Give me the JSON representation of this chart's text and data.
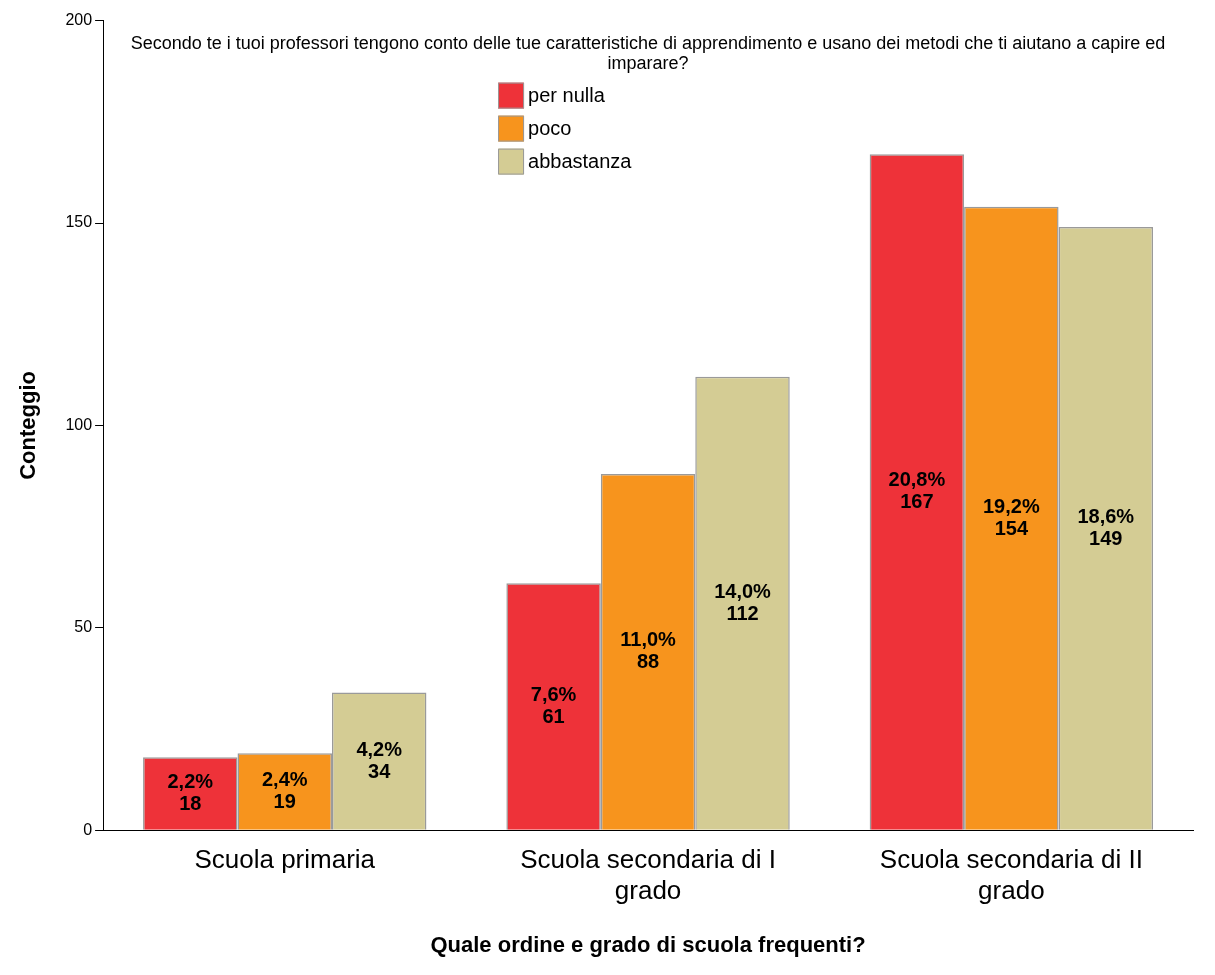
{
  "chart_data": {
    "type": "bar",
    "legend_title": "Secondo te i tuoi professori tengono conto delle tue caratteristiche di apprendimento e usano dei metodi che ti aiutano a capire ed imparare?",
    "xlabel": "Quale ordine e grado di scuola frequenti?",
    "ylabel": "Conteggio",
    "categories": [
      "Scuola primaria",
      "Scuola secondaria di I grado",
      "Scuola secondaria di II grado"
    ],
    "series": [
      {
        "name": "per nulla",
        "color": "#ee3239",
        "values": [
          18,
          61,
          167
        ],
        "value_labels": [
          "2,2%\n18",
          "7,6%\n61",
          "20,8%\n167"
        ]
      },
      {
        "name": "poco",
        "color": "#f7941d",
        "values": [
          19,
          88,
          154
        ],
        "value_labels": [
          "2,4%\n19",
          "11,0%\n88",
          "19,2%\n154"
        ]
      },
      {
        "name": "abbastanza",
        "color": "#d4cc94",
        "values": [
          34,
          112,
          149
        ],
        "value_labels": [
          "4,2%\n34",
          "14,0%\n112",
          "18,6%\n149"
        ]
      }
    ],
    "ylim": [
      0,
      200
    ],
    "yticks": [
      0,
      50,
      100,
      150,
      200
    ],
    "grid": false,
    "legend": "top"
  }
}
